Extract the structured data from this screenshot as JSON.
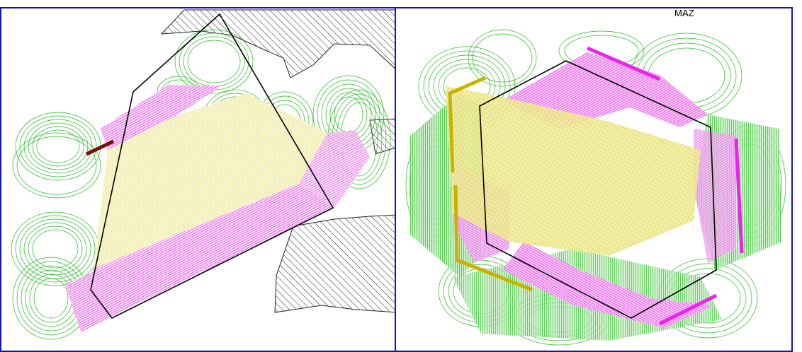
{
  "label": "MAZ",
  "colors": {
    "frame": "#1414b4",
    "sweep": "#22bb1c",
    "pass_a": "#e84fe8",
    "pass_b": "#f2ee9a",
    "pass_c": "#c8b400",
    "mark_dark": "#7a0c0c",
    "mark_magenta": "#ee22ee",
    "boundary": "#000000",
    "obstacle_hatch": "#222222"
  }
}
